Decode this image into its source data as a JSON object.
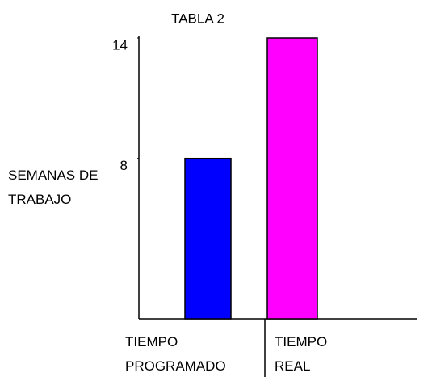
{
  "chart_data": {
    "type": "bar",
    "title": "TABLA 2",
    "y_label": "SEMANAS DE TRABAJO",
    "categories": [
      "TIEMPO PROGRAMADO",
      "TIEMPO REAL"
    ],
    "series": [
      {
        "name": null,
        "colors": [
          "#0000ff",
          "#ff00ff"
        ],
        "values": [
          8,
          14
        ]
      }
    ],
    "ylim": [
      0,
      14
    ],
    "yticks": [
      8,
      14
    ],
    "grid": false
  }
}
